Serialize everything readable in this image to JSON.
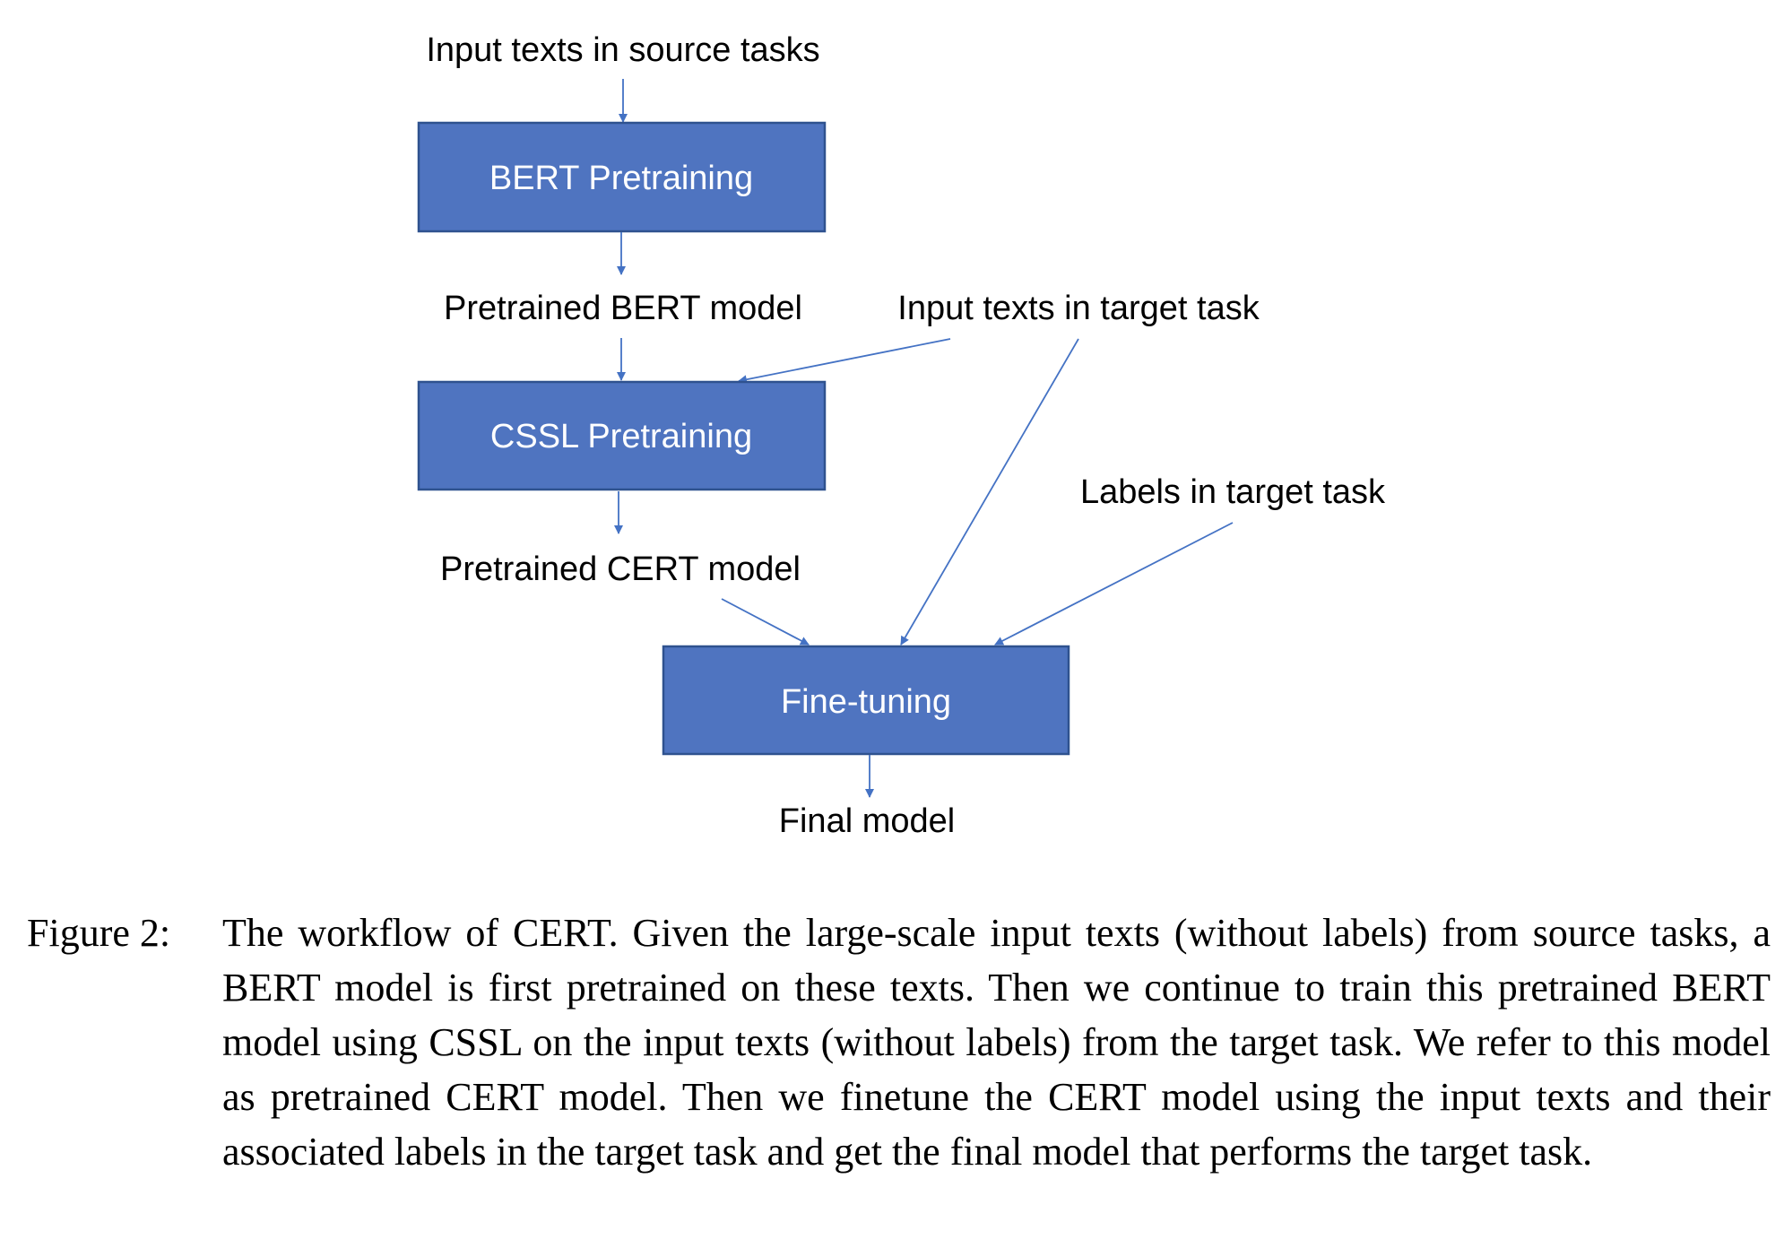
{
  "diagram": {
    "nodes": {
      "bert": "BERT Pretraining",
      "cssl": "CSSL Pretraining",
      "finetune": "Fine-tuning"
    },
    "labels": {
      "input_source": "Input texts in source tasks",
      "pretrained_bert": "Pretrained BERT model",
      "input_target": "Input texts in target task",
      "pretrained_cert": "Pretrained CERT model",
      "labels_target": "Labels in target task",
      "final_model": "Final model"
    },
    "colors": {
      "box_fill": "#4f74c0",
      "box_border": "#2f528f",
      "arrow": "#4472c4"
    }
  },
  "caption": {
    "label": "Figure 2:",
    "text": "The workflow of CERT. Given the large-scale input texts (without labels) from source tasks, a BERT model is first pretrained on these texts. Then we continue to train this pretrained BERT model using CSSL on the input texts (without labels) from the target task. We refer to this model as pretrained CERT model. Then we finetune the CERT model using the input texts and their associated labels in the target task and get the final model that performs the target task."
  }
}
